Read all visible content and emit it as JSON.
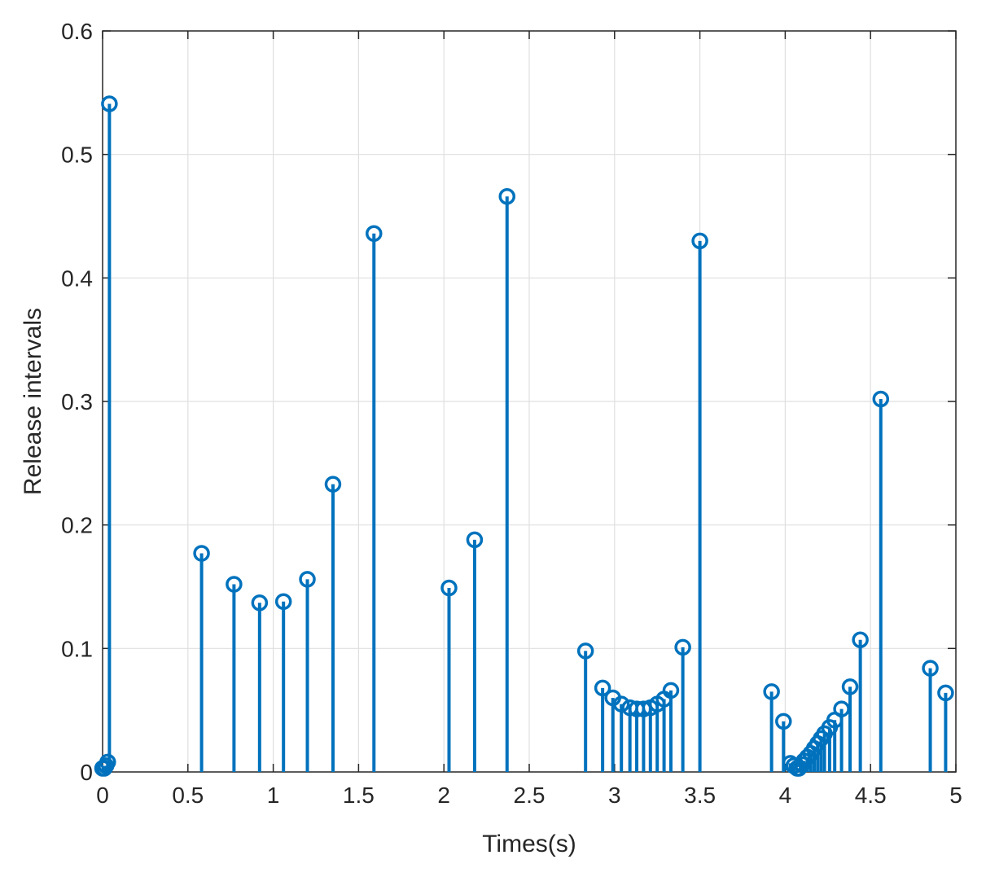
{
  "chart_data": {
    "type": "stem",
    "xlabel": "Times(s)",
    "ylabel": "Release intervals",
    "xlim": [
      0,
      5
    ],
    "ylim": [
      0,
      0.6
    ],
    "xticks": [
      0,
      0.5,
      1,
      1.5,
      2,
      2.5,
      3,
      3.5,
      4,
      4.5,
      5
    ],
    "xtick_labels": [
      "0",
      "0.5",
      "1",
      "1.5",
      "2",
      "2.5",
      "3",
      "3.5",
      "4",
      "4.5",
      "5"
    ],
    "yticks": [
      0,
      0.1,
      0.2,
      0.3,
      0.4,
      0.5,
      0.6
    ],
    "ytick_labels": [
      "0",
      "0.1",
      "0.2",
      "0.3",
      "0.4",
      "0.5",
      "0.6"
    ],
    "grid": true,
    "series": [
      {
        "color": "#0072bd",
        "x": [
          0.0,
          0.01,
          0.02,
          0.03,
          0.04,
          0.58,
          0.77,
          0.92,
          1.06,
          1.2,
          1.35,
          1.59,
          2.03,
          2.18,
          2.37,
          2.83,
          2.93,
          2.99,
          3.04,
          3.09,
          3.13,
          3.17,
          3.21,
          3.25,
          3.29,
          3.33,
          3.4,
          3.5,
          3.92,
          3.99,
          4.03,
          4.05,
          4.07,
          4.08,
          4.1,
          4.11,
          4.13,
          4.15,
          4.17,
          4.19,
          4.21,
          4.23,
          4.26,
          4.29,
          4.33,
          4.38,
          4.44,
          4.56,
          4.85,
          4.94
        ],
        "y": [
          0.003,
          0.003,
          0.005,
          0.008,
          0.541,
          0.177,
          0.152,
          0.137,
          0.138,
          0.156,
          0.233,
          0.436,
          0.149,
          0.188,
          0.466,
          0.098,
          0.068,
          0.06,
          0.055,
          0.052,
          0.051,
          0.051,
          0.052,
          0.055,
          0.059,
          0.066,
          0.101,
          0.43,
          0.065,
          0.041,
          0.007,
          0.005,
          0.003,
          0.003,
          0.006,
          0.009,
          0.012,
          0.015,
          0.019,
          0.023,
          0.027,
          0.031,
          0.036,
          0.042,
          0.051,
          0.069,
          0.107,
          0.302,
          0.084,
          0.064
        ]
      }
    ]
  }
}
